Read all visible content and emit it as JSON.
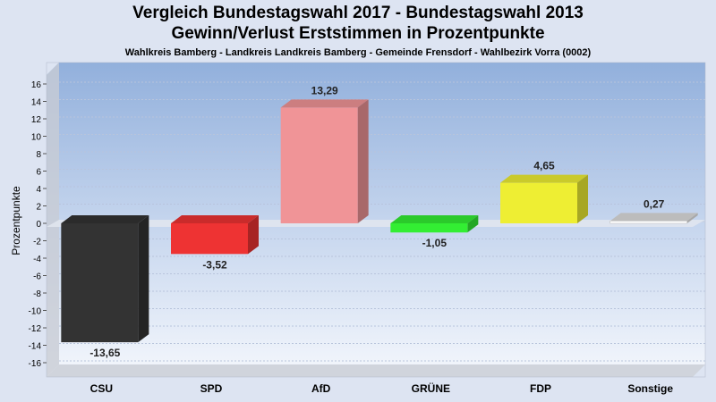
{
  "chart_data": {
    "type": "bar",
    "title": "Vergleich Bundestagswahl 2017 - Bundestagswahl 2013",
    "subtitle": "Gewinn/Verlust Erststimmen in Prozentpunkte",
    "subtitle2": "Wahlkreis Bamberg - Landkreis Landkreis Bamberg - Gemeinde Frensdorf - Wahlbezirk Vorra (0002)",
    "ylabel": "Prozentpunkte",
    "xlabel": "",
    "ylim": [
      -17,
      18
    ],
    "yticks": [
      16,
      14,
      12,
      10,
      8,
      6,
      4,
      2,
      0,
      -2,
      -4,
      -6,
      -8,
      -10,
      -12,
      -14,
      -16
    ],
    "categories": [
      "CSU",
      "SPD",
      "AfD",
      "GRÜNE",
      "FDP",
      "Sonstige"
    ],
    "values": [
      -13.65,
      -3.52,
      13.29,
      -1.05,
      4.65,
      0.27
    ],
    "value_labels": [
      "-13,65",
      "-3,52",
      "13,29",
      "-1,05",
      "4,65",
      "0,27"
    ],
    "colors": [
      "#333333",
      "#ee3333",
      "#f09497",
      "#33ee33",
      "#eeee33",
      "#ffffff"
    ],
    "grid": true,
    "legend": "none"
  }
}
